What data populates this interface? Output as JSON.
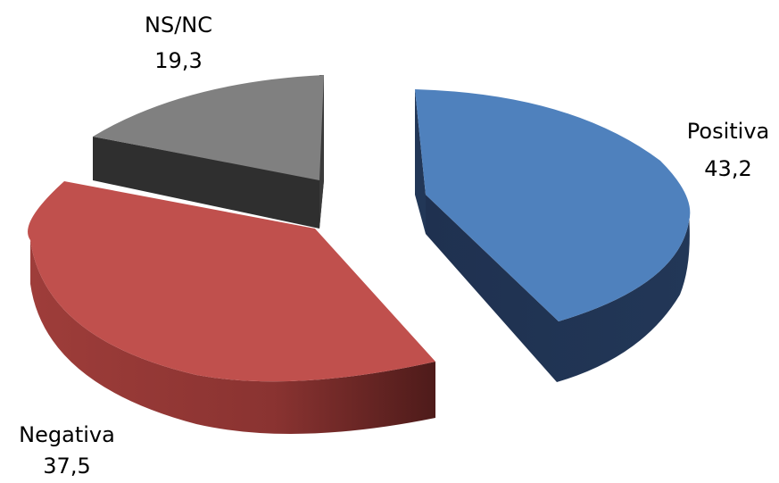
{
  "chart_data": {
    "type": "pie",
    "title": "",
    "categories": [
      "Positiva",
      "Negativa",
      "NS/NC"
    ],
    "values": [
      43.2,
      37.5,
      19.3
    ],
    "value_labels": [
      "43,2",
      "37,5",
      "19,3"
    ],
    "colors": {
      "Positiva": "#4f81bd",
      "Negativa": "#c0504d",
      "NS/NC": "#808080"
    },
    "side_colors": {
      "Positiva": "#1f3150",
      "Negativa": "#642523",
      "NS/NC": "#333333"
    },
    "legend": "none",
    "style": "3d-exploded"
  }
}
